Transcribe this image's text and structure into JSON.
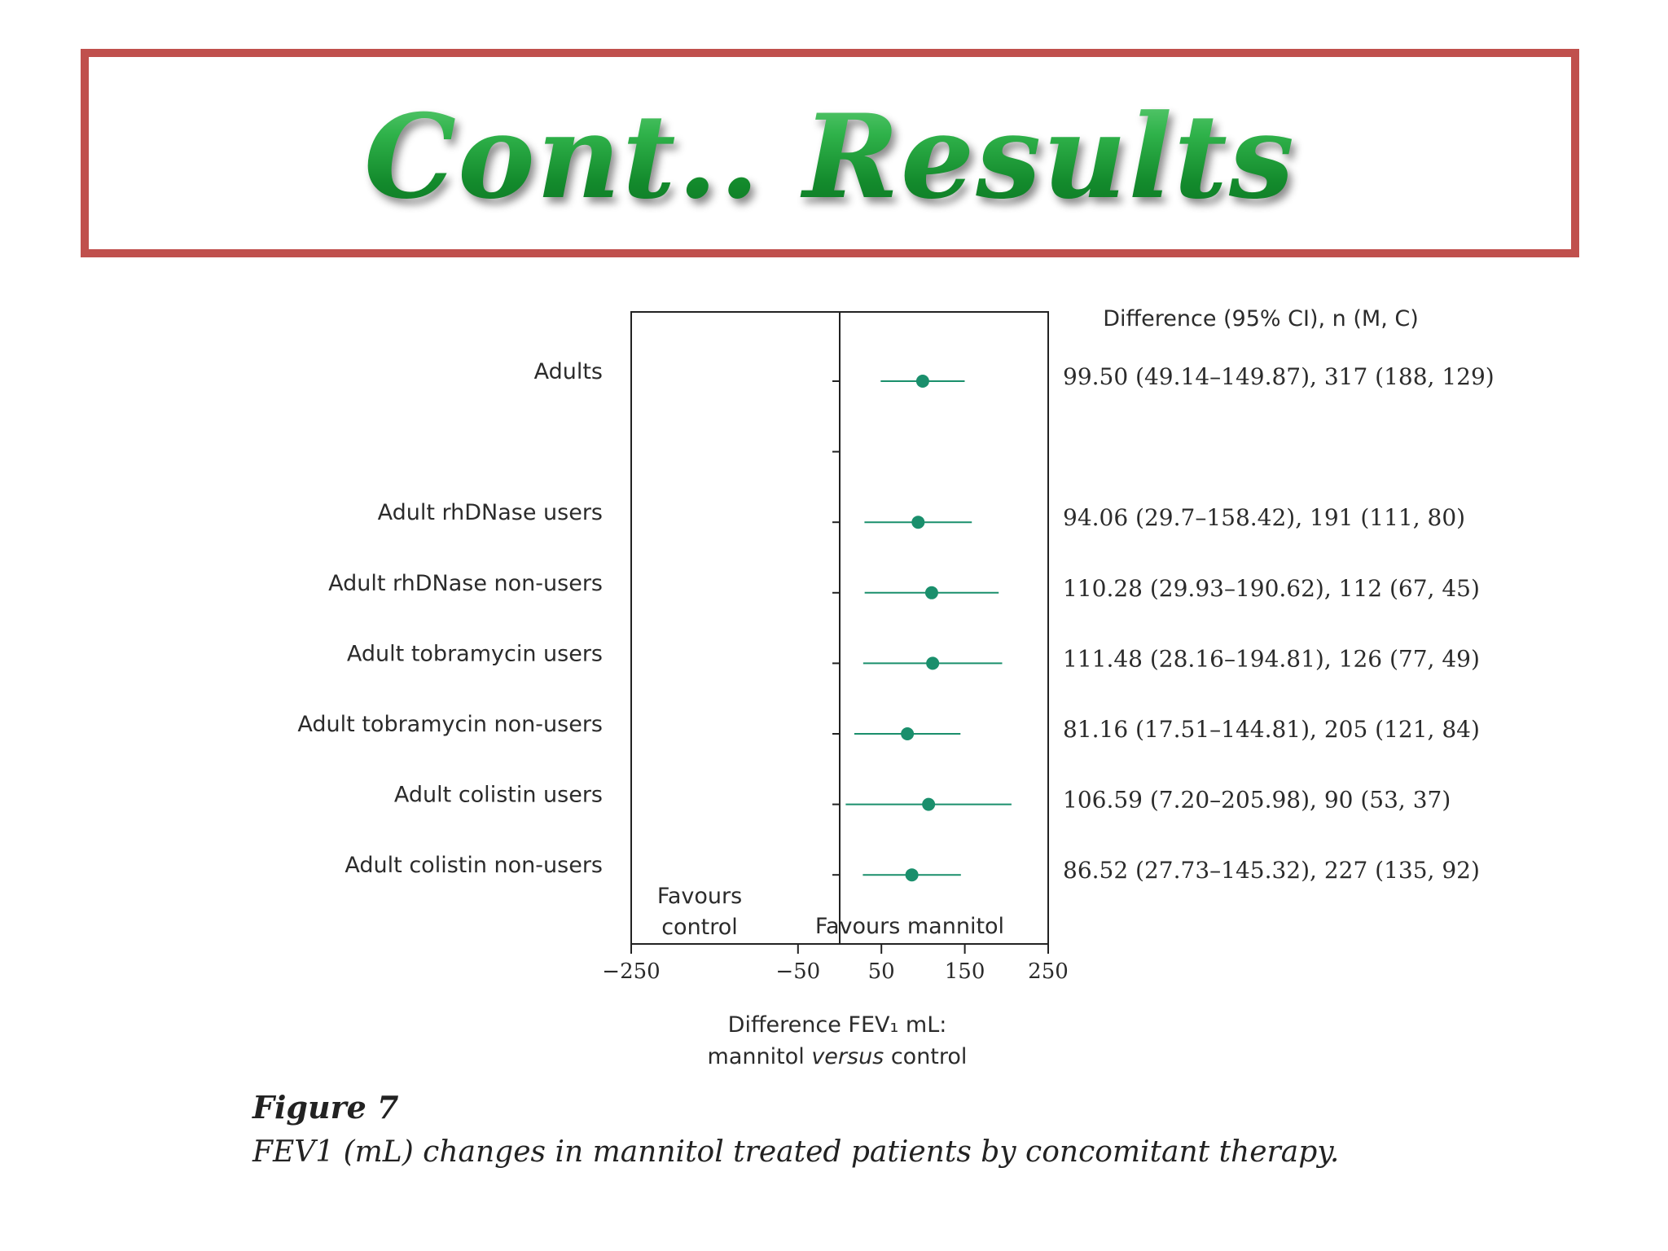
{
  "slide": {
    "title": "Cont.. Results",
    "title_border_color": "#c0504d"
  },
  "figure": {
    "label": "Figure 7",
    "caption": "FEV1 (mL) changes in mannitol treated patients by concomitant therapy."
  },
  "chart_data": {
    "type": "forest",
    "column_header": "Difference (95% CI), n (M, C)",
    "categories": [
      "Adults",
      "",
      "Adult rhDNase users",
      "Adult rhDNase non-users",
      "Adult tobramycin users",
      "Adult tobramycin non-users",
      "Adult colistin users",
      "Adult colistin non-users"
    ],
    "series": [
      {
        "label": "Adults",
        "estimate": 99.5,
        "lower": 49.14,
        "upper": 149.87,
        "text": "99.50 (49.14–149.87), 317 (188, 129)"
      },
      {
        "label": "Adult rhDNase users",
        "estimate": 94.06,
        "lower": 29.7,
        "upper": 158.42,
        "text": "94.06 (29.7–158.42), 191 (111, 80)"
      },
      {
        "label": "Adult rhDNase non-users",
        "estimate": 110.28,
        "lower": 29.93,
        "upper": 190.62,
        "text": "110.28 (29.93–190.62), 112 (67, 45)"
      },
      {
        "label": "Adult tobramycin users",
        "estimate": 111.48,
        "lower": 28.16,
        "upper": 194.81,
        "text": "111.48 (28.16–194.81), 126 (77, 49)"
      },
      {
        "label": "Adult tobramycin non-users",
        "estimate": 81.16,
        "lower": 17.51,
        "upper": 144.81,
        "text": "81.16 (17.51–144.81), 205 (121, 84)"
      },
      {
        "label": "Adult colistin users",
        "estimate": 106.59,
        "lower": 7.2,
        "upper": 205.98,
        "text": "106.59 (7.20–205.98), 90 (53, 37)"
      },
      {
        "label": "Adult colistin non-users",
        "estimate": 86.52,
        "lower": 27.73,
        "upper": 145.32,
        "text": "86.52 (27.73–145.32), 227 (135, 92)"
      }
    ],
    "xlim": [
      -250,
      250
    ],
    "xticks": [
      -250,
      -50,
      50,
      150,
      250
    ],
    "xtick_labels": [
      "−250",
      "−50",
      "50",
      "150",
      "250"
    ],
    "reference_line": 0,
    "xlabel_line1": "Difference FEV₁ mL:",
    "xlabel_line2_pre": "mannitol ",
    "xlabel_line2_em": "versus",
    "xlabel_line2_post": " control",
    "favours_left_line1": "Favours",
    "favours_left_line2": "control",
    "favours_right": "Favours mannitol",
    "marker_color": "#1a8f6c"
  }
}
